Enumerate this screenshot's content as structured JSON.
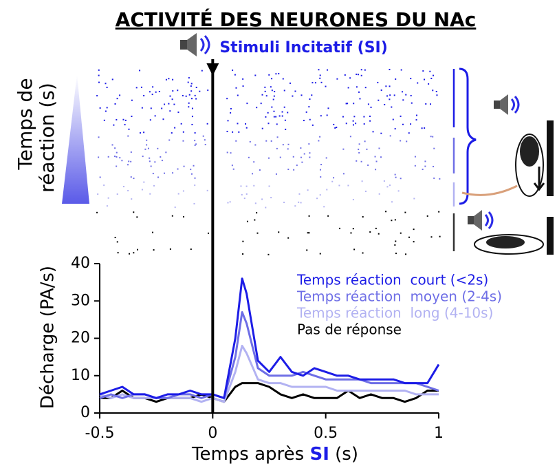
{
  "chart_data": {
    "type": "line",
    "title": "ACTIVITÉ DES NEURONES DU NAc",
    "event_line": {
      "x": 0,
      "label": "Stimuli Incitatif (SI)"
    },
    "raster_label": [
      "Temps de",
      "réaction (s)"
    ],
    "y_label": "Décharge (PA/s)",
    "x_label": [
      "Temps après ",
      "SI",
      " (s)"
    ],
    "x": [
      -0.5,
      -0.45,
      -0.4,
      -0.35,
      -0.3,
      -0.25,
      -0.2,
      -0.15,
      -0.1,
      -0.05,
      0,
      0.05,
      0.1,
      0.13,
      0.15,
      0.2,
      0.25,
      0.3,
      0.35,
      0.4,
      0.45,
      0.5,
      0.55,
      0.6,
      0.65,
      0.7,
      0.75,
      0.8,
      0.85,
      0.9,
      0.95,
      1
    ],
    "series": [
      {
        "name": "Temps réaction  court (<2s)",
        "color": "#1c1ce6",
        "values": [
          5,
          6,
          7,
          5,
          5,
          4,
          5,
          5,
          6,
          5,
          5,
          4,
          20,
          36,
          32,
          14,
          11,
          15,
          11,
          10,
          12,
          11,
          10,
          10,
          9,
          9,
          9,
          9,
          8,
          8,
          8,
          13
        ]
      },
      {
        "name": "Temps réaction  moyen (2-4s)",
        "color": "#6e6ee6",
        "values": [
          4,
          5,
          4,
          5,
          5,
          4,
          4,
          5,
          5,
          4,
          5,
          4,
          15,
          27,
          24,
          12,
          10,
          10,
          10,
          11,
          10,
          9,
          9,
          9,
          9,
          8,
          8,
          8,
          8,
          8,
          7,
          6
        ]
      },
      {
        "name": "Temps réaction  long (4-10s)",
        "color": "#b2b2f2",
        "values": [
          5,
          4,
          5,
          4,
          4,
          4,
          4,
          4,
          4,
          3,
          4,
          3,
          11,
          18,
          16,
          9,
          8,
          8,
          7,
          7,
          7,
          7,
          6,
          6,
          6,
          6,
          6,
          6,
          6,
          5,
          5,
          5
        ]
      },
      {
        "name": "Pas de réponse",
        "color": "#000000",
        "values": [
          4,
          4,
          6,
          4,
          4,
          3,
          4,
          4,
          4,
          5,
          4,
          3,
          7,
          8,
          8,
          8,
          7,
          5,
          4,
          5,
          4,
          4,
          4,
          6,
          4,
          5,
          4,
          4,
          3,
          4,
          6,
          6
        ]
      }
    ],
    "xlim": [
      -0.5,
      1
    ],
    "xticks": [
      -0.5,
      0,
      0.5,
      1
    ],
    "ylim": [
      0,
      40
    ],
    "yticks": [
      0,
      10,
      20,
      30,
      40
    ]
  }
}
